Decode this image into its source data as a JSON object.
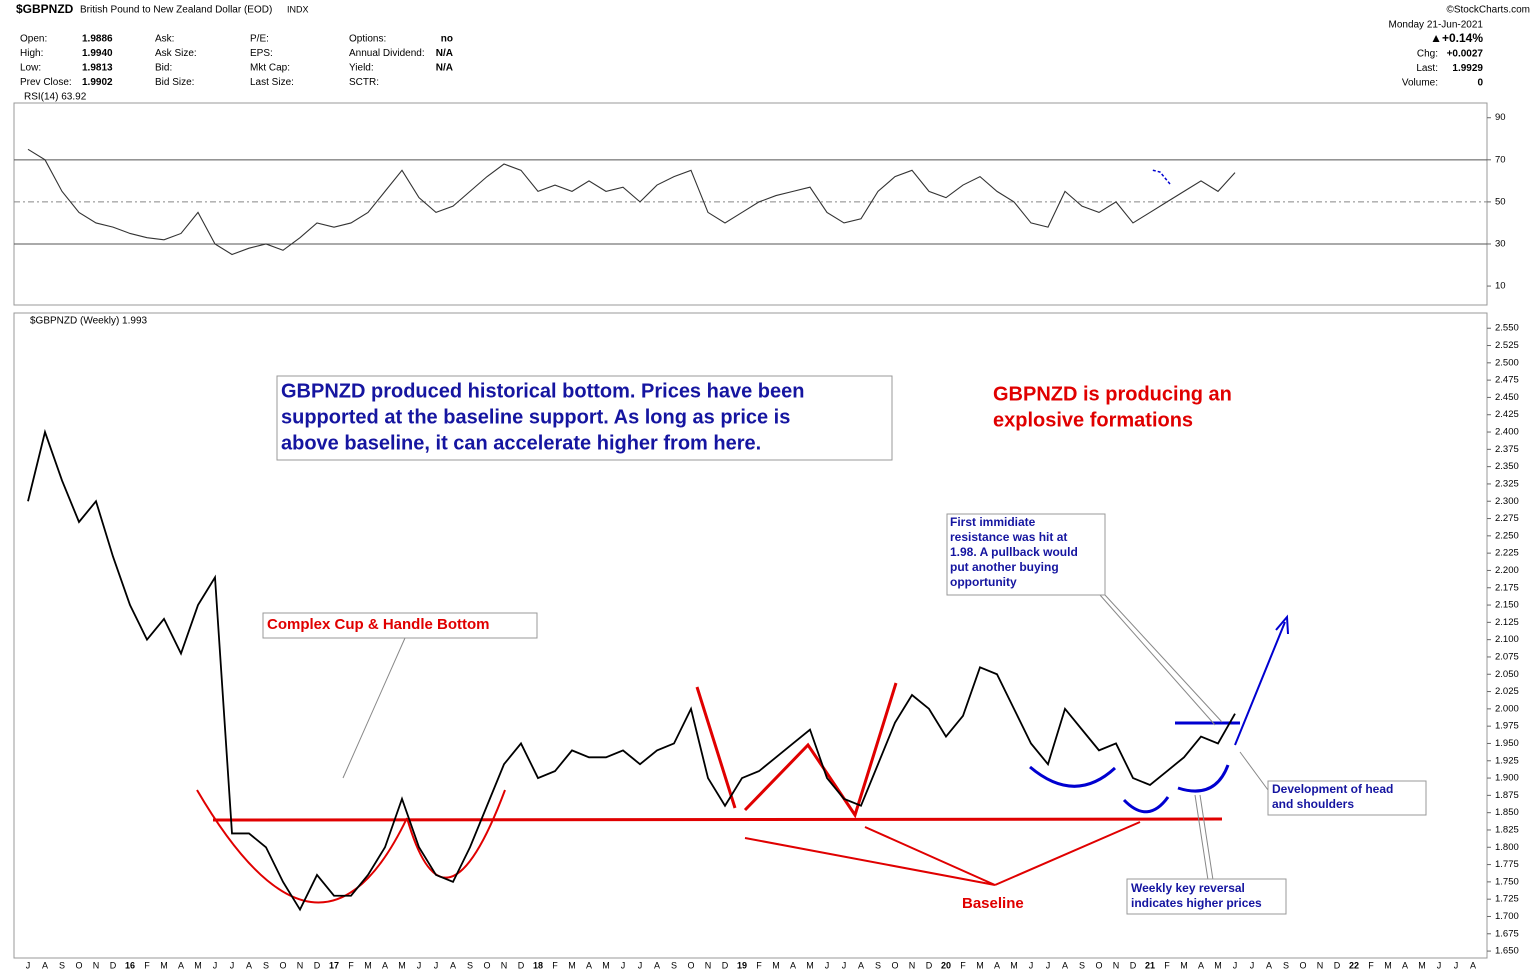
{
  "header": {
    "symbol": "$GBPNZD",
    "name": "British Pound to New Zealand Dollar (EOD)",
    "exchange": "INDX",
    "credit": "©StockCharts.com",
    "stats": [
      [
        {
          "label": "Open:",
          "value": "1.9886"
        },
        {
          "label": "High:",
          "value": "1.9940"
        },
        {
          "label": "Low:",
          "value": "1.9813"
        },
        {
          "label": "Prev Close:",
          "value": "1.9902"
        }
      ],
      [
        {
          "label": "Ask:"
        },
        {
          "label": "Ask Size:"
        },
        {
          "label": "Bid:"
        },
        {
          "label": "Bid Size:"
        }
      ],
      [
        {
          "label": "P/E:"
        },
        {
          "label": "EPS:"
        },
        {
          "label": "Mkt Cap:"
        },
        {
          "label": "Last Size:"
        }
      ],
      [
        {
          "label": "Options:",
          "value": "no"
        },
        {
          "label": "Annual Dividend:",
          "value": "N/A"
        },
        {
          "label": "Yield:",
          "value": "N/A"
        },
        {
          "label": "SCTR:"
        }
      ]
    ],
    "date": "Monday  21-Jun-2021",
    "change_pct": "▲+0.14%",
    "right": [
      {
        "label": "Chg:",
        "value": "+0.0027"
      },
      {
        "label": "Last:",
        "value": "1.9929"
      },
      {
        "label": "Volume:",
        "value": "0"
      }
    ]
  },
  "chart_data": [
    {
      "type": "line",
      "title": "RSI(14) 63.92",
      "color": "#333333",
      "ylim": [
        1,
        97
      ],
      "yticks": [
        90,
        70,
        50,
        30,
        10
      ],
      "hlines": [
        70,
        30
      ],
      "dashed_hlines": [
        50
      ],
      "last_label": "63.92",
      "values": [
        75,
        70,
        55,
        45,
        40,
        38,
        35,
        33,
        32,
        35,
        45,
        30,
        25,
        28,
        30,
        27,
        33,
        40,
        38,
        40,
        45,
        55,
        65,
        52,
        45,
        48,
        55,
        62,
        68,
        65,
        55,
        58,
        55,
        60,
        55,
        57,
        50,
        58,
        62,
        65,
        45,
        40,
        45,
        50,
        53,
        55,
        57,
        45,
        40,
        42,
        55,
        62,
        65,
        55,
        52,
        58,
        62,
        55,
        50,
        40,
        38,
        55,
        48,
        45,
        50,
        40,
        45,
        50,
        55,
        60,
        55,
        63.92,
        null,
        null,
        null,
        null,
        null,
        null,
        null,
        null,
        null,
        null,
        null,
        null,
        null,
        null
      ]
    },
    {
      "type": "line",
      "title": "$GBPNZD (Weekly) 1.993",
      "color": "#000000",
      "ylim": [
        1.64,
        2.572
      ],
      "last_label": "1.993",
      "yticks": [
        {
          "value": 1.65,
          "label": "1.650"
        },
        {
          "value": 1.675,
          "label": "1.675"
        },
        {
          "value": 1.7,
          "label": "1.700"
        },
        {
          "value": 1.725,
          "label": "1.725"
        },
        {
          "value": 1.75,
          "label": "1.750"
        },
        {
          "value": 1.775,
          "label": "1.775"
        },
        {
          "value": 1.8,
          "label": "1.800"
        },
        {
          "value": 1.825,
          "label": "1.825"
        },
        {
          "value": 1.85,
          "label": "1.850"
        },
        {
          "value": 1.875,
          "label": "1.875"
        },
        {
          "value": 1.9,
          "label": "1.900"
        },
        {
          "value": 1.925,
          "label": "1.925"
        },
        {
          "value": 1.95,
          "label": "1.950"
        },
        {
          "value": 1.975,
          "label": "1.975"
        },
        {
          "value": 2.0,
          "label": "2.000"
        },
        {
          "value": 2.025,
          "label": "2.025"
        },
        {
          "value": 2.05,
          "label": "2.050"
        },
        {
          "value": 2.075,
          "label": "2.075"
        },
        {
          "value": 2.1,
          "label": "2.100"
        },
        {
          "value": 2.125,
          "label": "2.125"
        },
        {
          "value": 2.15,
          "label": "2.150"
        },
        {
          "value": 2.175,
          "label": "2.175"
        },
        {
          "value": 2.2,
          "label": "2.200"
        },
        {
          "value": 2.225,
          "label": "2.225"
        },
        {
          "value": 2.25,
          "label": "2.250"
        },
        {
          "value": 2.275,
          "label": "2.275"
        },
        {
          "value": 2.3,
          "label": "2.300"
        },
        {
          "value": 2.325,
          "label": "2.325"
        },
        {
          "value": 2.35,
          "label": "2.350"
        },
        {
          "value": 2.375,
          "label": "2.375"
        },
        {
          "value": 2.4,
          "label": "2.400"
        },
        {
          "value": 2.425,
          "label": "2.425"
        },
        {
          "value": 2.45,
          "label": "2.450"
        },
        {
          "value": 2.475,
          "label": "2.475"
        },
        {
          "value": 2.5,
          "label": "2.500"
        },
        {
          "value": 2.525,
          "label": "2.525"
        },
        {
          "value": 2.55,
          "label": "2.550"
        }
      ],
      "categories": [
        "J",
        "A",
        "S",
        "O",
        "N",
        "D",
        "16",
        "F",
        "M",
        "A",
        "M",
        "J",
        "J",
        "A",
        "S",
        "O",
        "N",
        "D",
        "17",
        "F",
        "M",
        "A",
        "M",
        "J",
        "J",
        "A",
        "S",
        "O",
        "N",
        "D",
        "18",
        "F",
        "M",
        "A",
        "M",
        "J",
        "J",
        "A",
        "S",
        "O",
        "N",
        "D",
        "19",
        "F",
        "M",
        "A",
        "M",
        "J",
        "J",
        "A",
        "S",
        "O",
        "N",
        "D",
        "20",
        "F",
        "M",
        "A",
        "M",
        "J",
        "J",
        "A",
        "S",
        "O",
        "N",
        "D",
        "21",
        "F",
        "M",
        "A",
        "M",
        "J",
        "J",
        "A",
        "S",
        "O",
        "N",
        "D",
        "22",
        "F",
        "M",
        "A",
        "M",
        "J",
        "J",
        "A"
      ],
      "values": [
        2.3,
        2.4,
        2.33,
        2.27,
        2.3,
        2.22,
        2.15,
        2.1,
        2.13,
        2.08,
        2.15,
        2.19,
        1.82,
        1.82,
        1.8,
        1.75,
        1.71,
        1.76,
        1.73,
        1.73,
        1.76,
        1.8,
        1.87,
        1.8,
        1.76,
        1.75,
        1.8,
        1.86,
        1.92,
        1.95,
        1.9,
        1.91,
        1.94,
        1.93,
        1.93,
        1.94,
        1.92,
        1.94,
        1.95,
        2.0,
        1.9,
        1.86,
        1.9,
        1.91,
        1.93,
        1.95,
        1.97,
        1.9,
        1.87,
        1.86,
        1.92,
        1.98,
        2.02,
        2.0,
        1.96,
        1.99,
        2.06,
        2.05,
        2.0,
        1.95,
        1.92,
        2.0,
        1.97,
        1.94,
        1.95,
        1.9,
        1.89,
        1.91,
        1.93,
        1.96,
        1.95,
        1.993,
        null,
        null,
        null,
        null,
        null,
        null,
        null,
        null,
        null,
        null,
        null,
        null,
        null,
        null
      ],
      "annotations": [
        {
          "lines": [
            "GBPNZD produced historical bottom. Prices have been",
            "supported at the baseline support. As long as price is",
            "above baseline, it can accelerate higher from here."
          ]
        },
        {
          "lines": [
            "GBPNZD is producing an",
            "explosive formations"
          ]
        },
        {
          "lines": [
            "Complex Cup & Handle Bottom"
          ]
        },
        {
          "lines": [
            "First immidiate",
            "resistance was hit at",
            "1.98. A pullback would",
            "put another buying",
            "opportunity"
          ]
        },
        {
          "lines": [
            "Development of head",
            "and shoulders"
          ]
        },
        {
          "lines": [
            "Baseline"
          ]
        },
        {
          "lines": [
            "Weekly key reversal",
            "indicates higher prices"
          ]
        }
      ]
    }
  ]
}
